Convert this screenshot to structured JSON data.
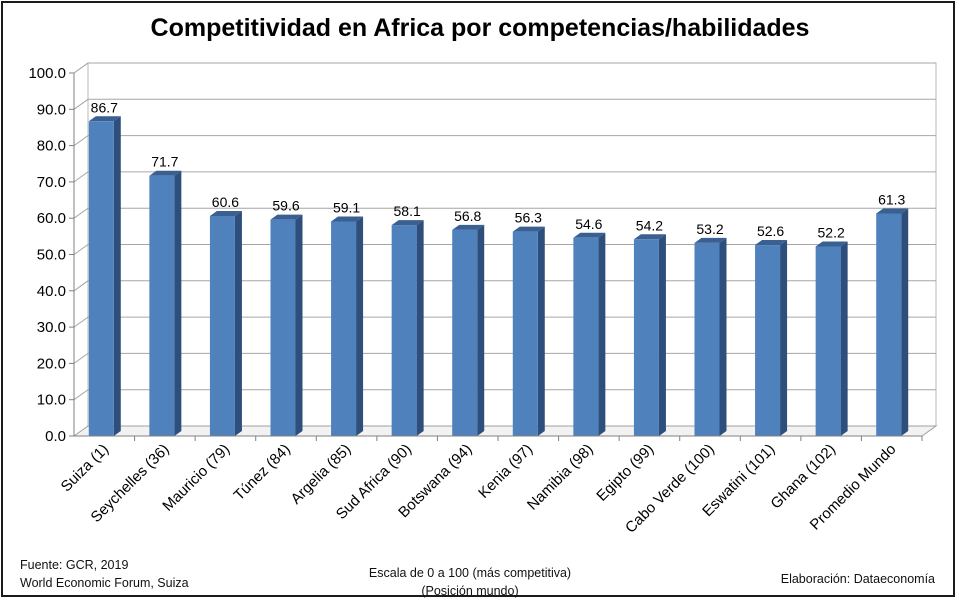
{
  "title": "Competitividad en Africa por competencias/habilidades",
  "footer": {
    "source_line1": "Fuente:  GCR, 2019",
    "source_line2": "World Economic Forum, Suiza",
    "scale_line1": "Escala de 0 a 100 (más competitiva)",
    "scale_line2": "(Posición mundo)",
    "credit": "Elaboración: Dataeconomía"
  },
  "chart_data": {
    "type": "bar",
    "title": "Competitividad en Africa por competencias/habilidades",
    "categories": [
      "Suiza (1)",
      "Seychelles (36)",
      "Mauricio (79)",
      "Túnez (84)",
      "Argelia (85)",
      "Sud Africa (90)",
      "Botswana (94)",
      "Kenia (97)",
      "Namibia (98)",
      "Egipto (99)",
      "Cabo Verde (100)",
      "Eswatini (101)",
      "Ghana (102)",
      "Promedio Mundo"
    ],
    "values": [
      86.7,
      71.7,
      60.6,
      59.6,
      59.1,
      58.1,
      56.8,
      56.3,
      54.6,
      54.2,
      53.2,
      52.6,
      52.2,
      61.3
    ],
    "value_labels": [
      "86.7",
      "71.7",
      "60.6",
      "59.6",
      "59.1",
      "58.1",
      "56.8",
      "56.3",
      "54.6",
      "54.2",
      "53.2",
      "52.6",
      "52.2",
      "61.3"
    ],
    "yticks": [
      "0.0",
      "10.0",
      "20.0",
      "30.0",
      "40.0",
      "50.0",
      "60.0",
      "70.0",
      "80.0",
      "90.0",
      "100.0"
    ],
    "ylim": [
      0,
      100
    ],
    "xlabel": "",
    "ylabel": "",
    "grid": true,
    "legend": "none",
    "bar_color": "#4f81bd",
    "bar_side_color": "#2e4f7c",
    "bar_top_color": "#3a5f91"
  }
}
